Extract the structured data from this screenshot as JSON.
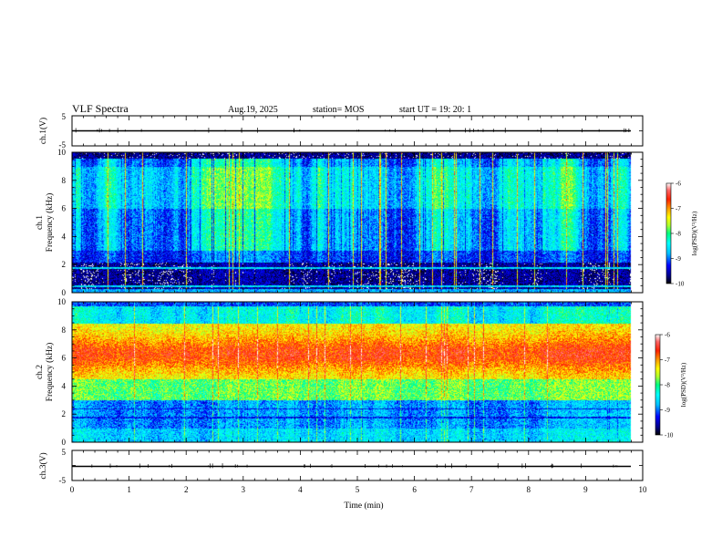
{
  "header": {
    "title": "VLF Spectra",
    "date": "Aug.19, 2025",
    "station": "station= MOS",
    "start": "start  UT =    19: 20: 1"
  },
  "colors": {
    "colormap": [
      "#000000",
      "#00008b",
      "#0000ff",
      "#00bfff",
      "#00ffff",
      "#00ff7f",
      "#adff2f",
      "#ffff00",
      "#ffa500",
      "#ff2000",
      "#ff6666",
      "#ffffff"
    ]
  },
  "chart_data": [
    {
      "type": "line",
      "id": "ch1-voltage",
      "ylabel": "ch.1(V)",
      "ylim": [
        -5,
        5
      ],
      "yticks": [
        "5",
        "-5"
      ],
      "trace_level": 0,
      "xlim": [
        0,
        10
      ]
    },
    {
      "type": "heatmap",
      "id": "ch1-spectrogram",
      "ylabel": "ch.1\nFrequency (kHz)",
      "ylim": [
        0,
        10
      ],
      "yticks": [
        "0",
        "2",
        "4",
        "6",
        "8",
        "10"
      ],
      "xlim": [
        0,
        9.8
      ],
      "zlabel": "log(PSD)(V²/Hz)",
      "zlim": [
        -10,
        -6
      ],
      "zticks": [
        "-6",
        "-7",
        "-8",
        "-9",
        "-10"
      ],
      "emission_band_khz": [
        3,
        10
      ],
      "lines_khz": [
        0.5,
        1.8
      ]
    },
    {
      "type": "heatmap",
      "id": "ch2-spectrogram",
      "ylabel": "ch.2\nFrequency (kHz)",
      "ylim": [
        0,
        10
      ],
      "yticks": [
        "0",
        "2",
        "4",
        "6",
        "8",
        "10"
      ],
      "xlim": [
        0,
        9.8
      ],
      "zlabel": "log(PSD)(V²/Hz)",
      "zlim": [
        -10,
        -6
      ],
      "zticks": [
        "-6",
        "-7",
        "-8",
        "-9",
        "-10"
      ],
      "peak_band_khz": [
        5,
        7.5
      ],
      "lines_khz": [
        1.8,
        2.4
      ]
    },
    {
      "type": "line",
      "id": "ch3-voltage",
      "ylabel": "ch.3(V)",
      "ylim": [
        -5,
        5
      ],
      "yticks": [
        "5",
        "-5"
      ],
      "trace_level": 0,
      "xlim": [
        0,
        10
      ]
    }
  ],
  "xaxis": {
    "xlabel": "Time  (min)",
    "ticks": [
      "0",
      "1",
      "2",
      "3",
      "4",
      "5",
      "6",
      "7",
      "8",
      "9",
      "10"
    ]
  }
}
